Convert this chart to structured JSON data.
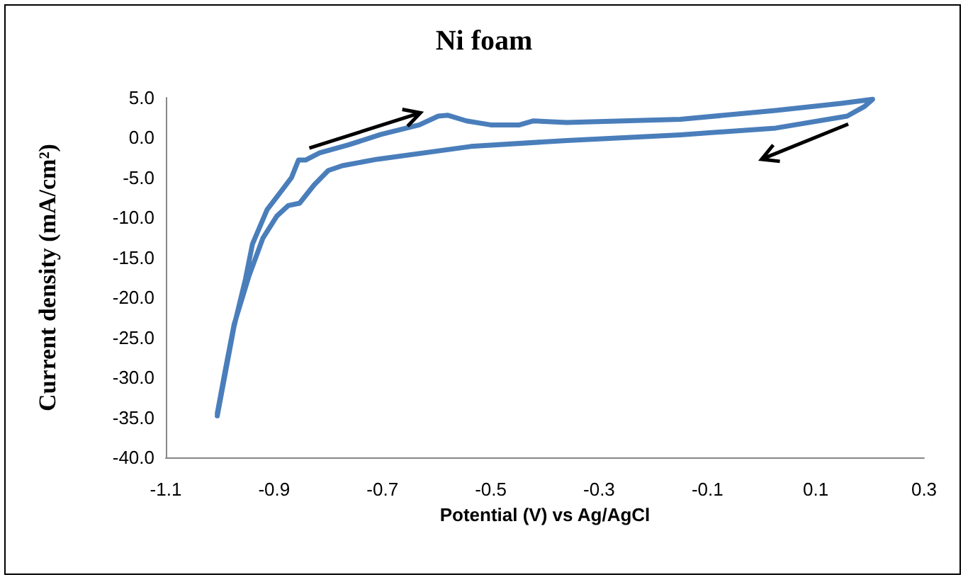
{
  "chart_data": {
    "type": "line",
    "title": "Ni foam",
    "xlabel": "Potential (V) vs Ag/AgCl",
    "ylabel": "Current density (mA/cm²)",
    "series": [
      {
        "color": "#4a7ebb",
        "x": [
          -1.005,
          -0.99,
          -0.974,
          -0.953,
          -0.94,
          -0.913,
          -0.887,
          -0.868,
          -0.855,
          -0.842,
          -0.816,
          -0.763,
          -0.703,
          -0.632,
          -0.597,
          -0.579,
          -0.545,
          -0.518,
          -0.5,
          -0.447,
          -0.421,
          -0.36,
          -0.15,
          0.026,
          0.147,
          0.205,
          0.19,
          0.158,
          0.026,
          -0.15,
          -0.36,
          -0.537,
          -0.71,
          -0.774,
          -0.8,
          -0.826,
          -0.853,
          -0.874,
          -0.895,
          -0.921,
          -0.947,
          -0.974,
          -0.99,
          -1.005
        ],
        "values": [
          -34.8,
          -29.4,
          -23.6,
          -17.7,
          -13.3,
          -9.0,
          -6.7,
          -5.0,
          -2.8,
          -2.8,
          -1.9,
          -0.9,
          0.4,
          1.6,
          2.7,
          2.8,
          2.1,
          1.8,
          1.6,
          1.6,
          2.1,
          1.9,
          2.3,
          3.4,
          4.3,
          4.8,
          3.9,
          2.7,
          1.2,
          0.35,
          -0.35,
          -1.1,
          -2.7,
          -3.5,
          -4.1,
          -5.9,
          -8.2,
          -8.5,
          -9.8,
          -12.6,
          -17.4,
          -23.4,
          -29.0,
          -34.5
        ]
      }
    ],
    "xlim": [
      -1.1,
      0.3
    ],
    "xticks": [
      -1.1,
      -0.9,
      -0.7,
      -0.5,
      -0.3,
      -0.1,
      0.1,
      0.3
    ],
    "ylim": [
      -40,
      5
    ],
    "yticks": [
      {
        "value": -40,
        "label": "-40.0"
      },
      {
        "value": -35,
        "label": "-35.0"
      },
      {
        "value": -30,
        "label": "-30.0"
      },
      {
        "value": -25,
        "label": "-25.0"
      },
      {
        "value": -20,
        "label": "-20.0"
      },
      {
        "value": -15,
        "label": "-15.0"
      },
      {
        "value": -10,
        "label": "-10.0"
      },
      {
        "value": -5,
        "label": "-5.0"
      },
      {
        "value": 0,
        "label": "0.0"
      },
      {
        "value": 5,
        "label": "5.0"
      }
    ],
    "grid": false,
    "marker": "none",
    "line_style": "solid"
  }
}
